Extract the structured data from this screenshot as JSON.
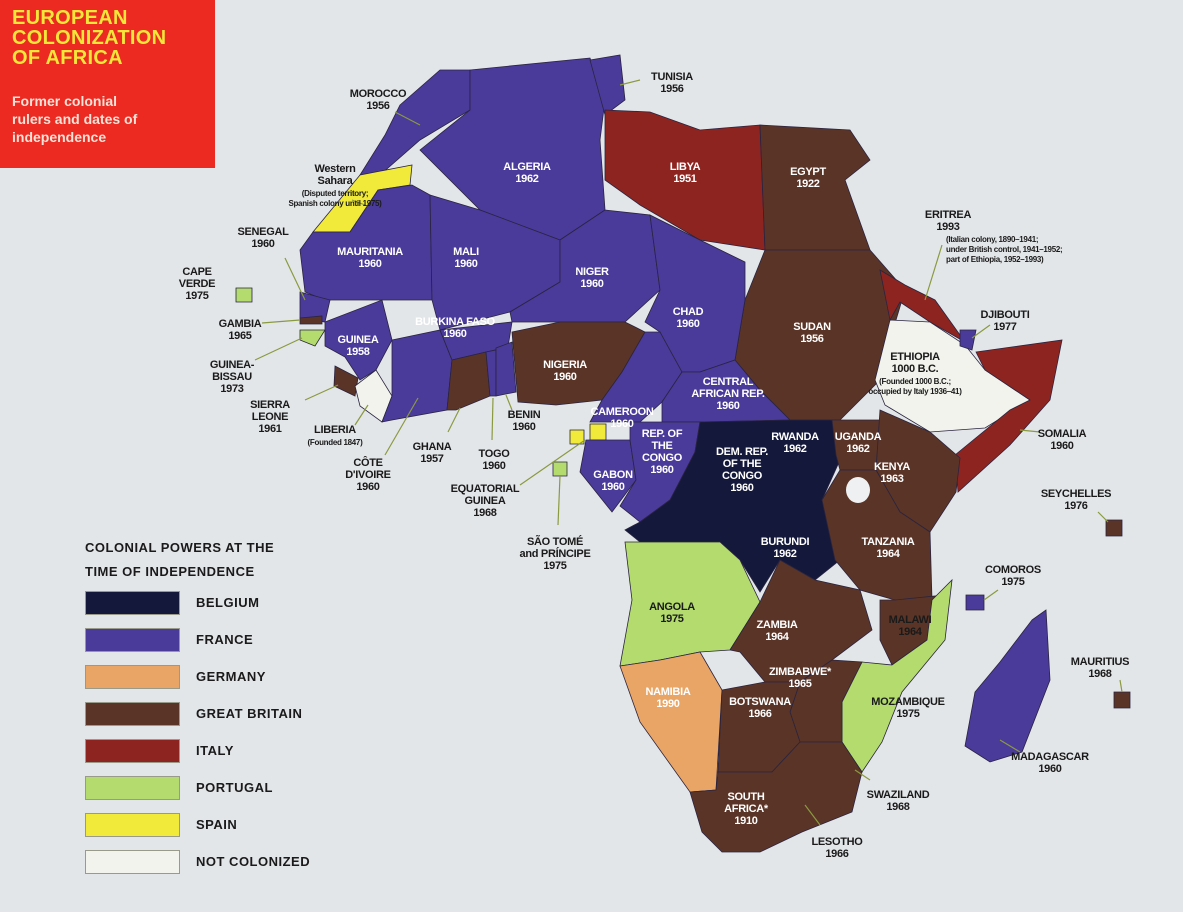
{
  "title": [
    "EUROPEAN",
    "COLONIZATION",
    "OF AFRICA"
  ],
  "subtitle": [
    "Former colonial",
    "rulers and dates of",
    "independence"
  ],
  "legend": {
    "heading": [
      "COLONIAL POWERS AT THE",
      "TIME OF INDEPENDENCE"
    ],
    "items": [
      {
        "label": "BELGIUM",
        "color": "#14183a"
      },
      {
        "label": "FRANCE",
        "color": "#4a3a9a"
      },
      {
        "label": "GERMANY",
        "color": "#e8a565"
      },
      {
        "label": "GREAT BRITAIN",
        "color": "#5a3426"
      },
      {
        "label": "ITALY",
        "color": "#8e2420"
      },
      {
        "label": "PORTUGAL",
        "color": "#b3db6e"
      },
      {
        "label": "SPAIN",
        "color": "#f1ea3a"
      },
      {
        "label": "NOT COLONIZED",
        "color": "#f2f3ec"
      }
    ]
  },
  "countries": {
    "tunisia": {
      "lines": [
        "TUNISIA",
        "1956"
      ],
      "power": "France"
    },
    "morocco": {
      "lines": [
        "MOROCCO",
        "1956"
      ],
      "power": "France"
    },
    "western_sahara": {
      "lines": [
        "Western",
        "Sahara"
      ],
      "note": [
        "(Disputed territory;",
        "Spanish colony until 1975)"
      ],
      "power": "Spain"
    },
    "algeria": {
      "lines": [
        "ALGERIA",
        "1962"
      ],
      "power": "France"
    },
    "libya": {
      "lines": [
        "LIBYA",
        "1951"
      ],
      "power": "Italy"
    },
    "egypt": {
      "lines": [
        "EGYPT",
        "1922"
      ],
      "power": "Great Britain"
    },
    "eritrea": {
      "lines": [
        "ERITREA",
        "1993"
      ],
      "note": [
        "(Italian colony, 1890–1941;",
        "under British control, 1941–1952;",
        "part of Ethiopia, 1952–1993)"
      ],
      "power": "Italy"
    },
    "senegal": {
      "lines": [
        "SENEGAL",
        "1960"
      ],
      "power": "France"
    },
    "mauritania": {
      "lines": [
        "MAURITANIA",
        "1960"
      ],
      "power": "France"
    },
    "mali": {
      "lines": [
        "MALI",
        "1960"
      ],
      "power": "France"
    },
    "niger": {
      "lines": [
        "NIGER",
        "1960"
      ],
      "power": "France"
    },
    "cape_verde": {
      "lines": [
        "CAPE",
        "VERDE",
        "1975"
      ],
      "power": "Portugal"
    },
    "chad": {
      "lines": [
        "CHAD",
        "1960"
      ],
      "power": "France"
    },
    "sudan": {
      "lines": [
        "SUDAN",
        "1956"
      ],
      "power": "Great Britain"
    },
    "djibouti": {
      "lines": [
        "DJIBOUTI",
        "1977"
      ],
      "power": "France"
    },
    "gambia": {
      "lines": [
        "GAMBIA",
        "1965"
      ],
      "power": "Great Britain"
    },
    "guinea": {
      "lines": [
        "GUINEA",
        "1958"
      ],
      "power": "France"
    },
    "burkina_faso": {
      "lines": [
        "BURKINA FASO",
        "1960"
      ],
      "power": "France"
    },
    "nigeria": {
      "lines": [
        "NIGERIA",
        "1960"
      ],
      "power": "Great Britain"
    },
    "ethiopia": {
      "lines": [
        "ETHIOPIA",
        "1000 B.C."
      ],
      "note": [
        "(Founded 1000 B.C.;",
        "occupied by Italy 1936–41)"
      ],
      "power": "Not colonized"
    },
    "guinea_bissau": {
      "lines": [
        "GUINEA-",
        "BISSAU",
        "1973"
      ],
      "power": "Portugal"
    },
    "central_african_rep": {
      "lines": [
        "CENTRAL",
        "AFRICAN REP.",
        "1960"
      ],
      "power": "France"
    },
    "sierra_leone": {
      "lines": [
        "SIERRA",
        "LEONE",
        "1961"
      ],
      "power": "Great Britain"
    },
    "liberia": {
      "lines": [
        "LIBERIA"
      ],
      "note": [
        "(Founded 1847)"
      ],
      "power": "Not colonized"
    },
    "benin": {
      "lines": [
        "BENIN",
        "1960"
      ],
      "power": "France"
    },
    "cameroon": {
      "lines": [
        "CAMEROON",
        "1960"
      ],
      "power": "France"
    },
    "somalia": {
      "lines": [
        "SOMALIA",
        "1960"
      ],
      "power": "Italy"
    },
    "ghana": {
      "lines": [
        "GHANA",
        "1957"
      ],
      "power": "Great Britain"
    },
    "togo": {
      "lines": [
        "TOGO",
        "1960"
      ],
      "power": "France"
    },
    "rwanda": {
      "lines": [
        "RWANDA",
        "1962"
      ],
      "power": "Belgium"
    },
    "uganda": {
      "lines": [
        "UGANDA",
        "1962"
      ],
      "power": "Great Britain"
    },
    "kenya": {
      "lines": [
        "KENYA",
        "1963"
      ],
      "power": "Great Britain"
    },
    "cote_divoire": {
      "lines": [
        "CÔTE",
        "D'IVOIRE",
        "1960"
      ],
      "power": "France"
    },
    "rep_congo": {
      "lines": [
        "REP. OF",
        "THE",
        "CONGO",
        "1960"
      ],
      "power": "France"
    },
    "gabon": {
      "lines": [
        "GABON",
        "1960"
      ],
      "power": "France"
    },
    "dem_rep_congo": {
      "lines": [
        "DEM. REP.",
        "OF THE",
        "CONGO",
        "1960"
      ],
      "power": "Belgium"
    },
    "equatorial_guinea": {
      "lines": [
        "EQUATORIAL",
        "GUINEA",
        "1968"
      ],
      "power": "Spain"
    },
    "seychelles": {
      "lines": [
        "SEYCHELLES",
        "1976"
      ],
      "power": "Great Britain"
    },
    "sao_tome": {
      "lines": [
        "SÃO TOMÉ",
        "and PRÍNCIPE",
        "1975"
      ],
      "power": "Portugal"
    },
    "burundi": {
      "lines": [
        "BURUNDI",
        "1962"
      ],
      "power": "Belgium"
    },
    "tanzania": {
      "lines": [
        "TANZANIA",
        "1964"
      ],
      "power": "Great Britain"
    },
    "comoros": {
      "lines": [
        "COMOROS",
        "1975"
      ],
      "power": "France"
    },
    "angola": {
      "lines": [
        "ANGOLA",
        "1975"
      ],
      "power": "Portugal"
    },
    "zambia": {
      "lines": [
        "ZAMBIA",
        "1964"
      ],
      "power": "Great Britain"
    },
    "malawi": {
      "lines": [
        "MALAWI",
        "1964"
      ],
      "power": "Great Britain"
    },
    "mauritius": {
      "lines": [
        "MAURITIUS",
        "1968"
      ],
      "power": "Great Britain"
    },
    "namibia": {
      "lines": [
        "NAMIBIA",
        "1990"
      ],
      "power": "Germany"
    },
    "zimbabwe": {
      "lines": [
        "ZIMBABWE*",
        "1965"
      ],
      "power": "Great Britain"
    },
    "botswana": {
      "lines": [
        "BOTSWANA",
        "1966"
      ],
      "power": "Great Britain"
    },
    "mozambique": {
      "lines": [
        "MOZAMBIQUE",
        "1975"
      ],
      "power": "Portugal"
    },
    "madagascar": {
      "lines": [
        "MADAGASCAR",
        "1960"
      ],
      "power": "France"
    },
    "swaziland": {
      "lines": [
        "SWAZILAND",
        "1968"
      ],
      "power": "Great Britain"
    },
    "south_africa": {
      "lines": [
        "SOUTH",
        "AFRICA*",
        "1910"
      ],
      "power": "Great Britain"
    },
    "lesotho": {
      "lines": [
        "LESOTHO",
        "1966"
      ],
      "power": "Great Britain"
    }
  }
}
